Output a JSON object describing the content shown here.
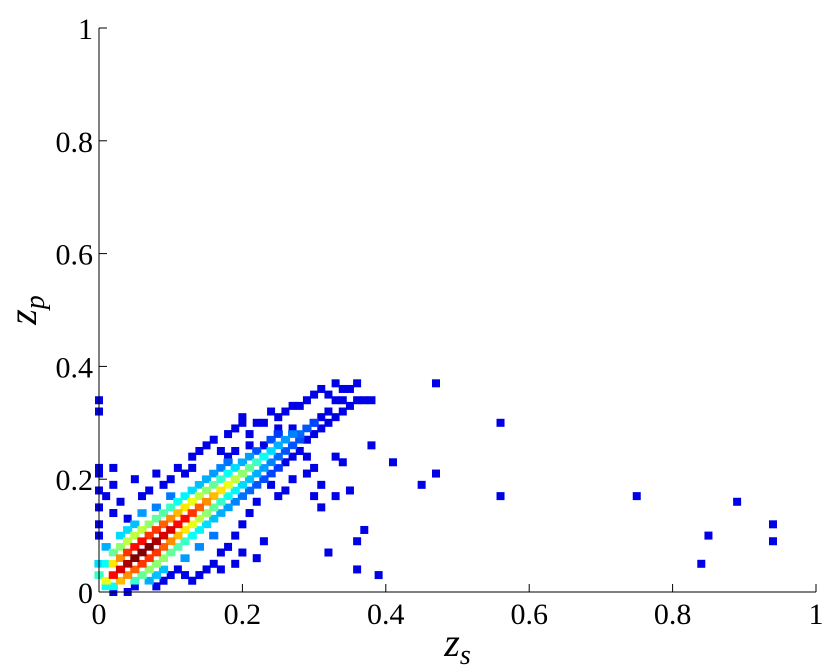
{
  "chart_data": {
    "type": "heatmap",
    "xlabel": {
      "main": "z",
      "sub": "s"
    },
    "ylabel": {
      "main": "z",
      "sub": "p"
    },
    "xlim": [
      0,
      1
    ],
    "ylim": [
      0,
      1
    ],
    "x_ticks": [
      "0",
      "0.2",
      "0.4",
      "0.6",
      "0.8",
      "1"
    ],
    "y_ticks": [
      "0",
      "0.2",
      "0.4",
      "0.6",
      "0.8",
      "1"
    ],
    "grid": false,
    "colormap": "jet",
    "cell_size": 0.01,
    "dense_cells": [
      {
        "x": 0.02,
        "y": 0.03,
        "v": 0.85
      },
      {
        "x": 0.03,
        "y": 0.04,
        "v": 0.9
      },
      {
        "x": 0.04,
        "y": 0.05,
        "v": 0.95
      },
      {
        "x": 0.05,
        "y": 0.06,
        "v": 1.0
      },
      {
        "x": 0.06,
        "y": 0.07,
        "v": 1.0
      },
      {
        "x": 0.07,
        "y": 0.08,
        "v": 1.0
      },
      {
        "x": 0.08,
        "y": 0.09,
        "v": 0.95
      },
      {
        "x": 0.09,
        "y": 0.1,
        "v": 0.9
      },
      {
        "x": 0.1,
        "y": 0.11,
        "v": 0.9
      },
      {
        "x": 0.11,
        "y": 0.12,
        "v": 0.85
      },
      {
        "x": 0.12,
        "y": 0.13,
        "v": 0.85
      },
      {
        "x": 0.13,
        "y": 0.14,
        "v": 0.8
      },
      {
        "x": 0.14,
        "y": 0.15,
        "v": 0.75
      },
      {
        "x": 0.15,
        "y": 0.16,
        "v": 0.7
      },
      {
        "x": 0.16,
        "y": 0.17,
        "v": 0.65
      },
      {
        "x": 0.17,
        "y": 0.18,
        "v": 0.6
      },
      {
        "x": 0.18,
        "y": 0.19,
        "v": 0.55
      },
      {
        "x": 0.19,
        "y": 0.2,
        "v": 0.5
      },
      {
        "x": 0.2,
        "y": 0.21,
        "v": 0.45
      },
      {
        "x": 0.21,
        "y": 0.22,
        "v": 0.4
      },
      {
        "x": 0.22,
        "y": 0.23,
        "v": 0.35
      },
      {
        "x": 0.23,
        "y": 0.24,
        "v": 0.3
      },
      {
        "x": 0.24,
        "y": 0.25,
        "v": 0.25
      },
      {
        "x": 0.25,
        "y": 0.26,
        "v": 0.2
      },
      {
        "x": 0.26,
        "y": 0.27,
        "v": 0.18
      },
      {
        "x": 0.27,
        "y": 0.28,
        "v": 0.15
      },
      {
        "x": 0.01,
        "y": 0.02,
        "v": 0.55
      },
      {
        "x": 0.02,
        "y": 0.05,
        "v": 0.6
      },
      {
        "x": 0.03,
        "y": 0.06,
        "v": 0.7
      },
      {
        "x": 0.04,
        "y": 0.07,
        "v": 0.8
      },
      {
        "x": 0.05,
        "y": 0.08,
        "v": 0.85
      },
      {
        "x": 0.06,
        "y": 0.09,
        "v": 0.85
      },
      {
        "x": 0.07,
        "y": 0.1,
        "v": 0.8
      },
      {
        "x": 0.08,
        "y": 0.11,
        "v": 0.8
      },
      {
        "x": 0.09,
        "y": 0.12,
        "v": 0.75
      },
      {
        "x": 0.1,
        "y": 0.13,
        "v": 0.7
      },
      {
        "x": 0.11,
        "y": 0.14,
        "v": 0.65
      },
      {
        "x": 0.12,
        "y": 0.15,
        "v": 0.6
      },
      {
        "x": 0.13,
        "y": 0.16,
        "v": 0.55
      },
      {
        "x": 0.14,
        "y": 0.17,
        "v": 0.5
      },
      {
        "x": 0.15,
        "y": 0.18,
        "v": 0.45
      },
      {
        "x": 0.16,
        "y": 0.19,
        "v": 0.4
      },
      {
        "x": 0.17,
        "y": 0.2,
        "v": 0.35
      },
      {
        "x": 0.18,
        "y": 0.21,
        "v": 0.3
      },
      {
        "x": 0.19,
        "y": 0.22,
        "v": 0.25
      },
      {
        "x": 0.2,
        "y": 0.23,
        "v": 0.2
      },
      {
        "x": 0.21,
        "y": 0.24,
        "v": 0.18
      },
      {
        "x": 0.03,
        "y": 0.02,
        "v": 0.65
      },
      {
        "x": 0.04,
        "y": 0.03,
        "v": 0.7
      },
      {
        "x": 0.05,
        "y": 0.04,
        "v": 0.75
      },
      {
        "x": 0.06,
        "y": 0.05,
        "v": 0.8
      },
      {
        "x": 0.07,
        "y": 0.06,
        "v": 0.8
      },
      {
        "x": 0.08,
        "y": 0.07,
        "v": 0.8
      },
      {
        "x": 0.09,
        "y": 0.08,
        "v": 0.75
      },
      {
        "x": 0.1,
        "y": 0.09,
        "v": 0.7
      },
      {
        "x": 0.11,
        "y": 0.1,
        "v": 0.65
      },
      {
        "x": 0.12,
        "y": 0.11,
        "v": 0.6
      },
      {
        "x": 0.13,
        "y": 0.12,
        "v": 0.55
      },
      {
        "x": 0.14,
        "y": 0.13,
        "v": 0.5
      },
      {
        "x": 0.15,
        "y": 0.14,
        "v": 0.45
      },
      {
        "x": 0.16,
        "y": 0.15,
        "v": 0.4
      },
      {
        "x": 0.17,
        "y": 0.16,
        "v": 0.35
      },
      {
        "x": 0.18,
        "y": 0.17,
        "v": 0.3
      },
      {
        "x": 0.19,
        "y": 0.18,
        "v": 0.28
      },
      {
        "x": 0.2,
        "y": 0.19,
        "v": 0.25
      },
      {
        "x": 0.21,
        "y": 0.2,
        "v": 0.22
      },
      {
        "x": 0.22,
        "y": 0.21,
        "v": 0.2
      },
      {
        "x": 0.23,
        "y": 0.22,
        "v": 0.18
      },
      {
        "x": 0.24,
        "y": 0.23,
        "v": 0.15
      },
      {
        "x": 0.25,
        "y": 0.24,
        "v": 0.12
      },
      {
        "x": 0.26,
        "y": 0.25,
        "v": 0.1
      },
      {
        "x": 0.02,
        "y": 0.07,
        "v": 0.4
      },
      {
        "x": 0.03,
        "y": 0.08,
        "v": 0.45
      },
      {
        "x": 0.04,
        "y": 0.09,
        "v": 0.5
      },
      {
        "x": 0.05,
        "y": 0.1,
        "v": 0.5
      },
      {
        "x": 0.06,
        "y": 0.11,
        "v": 0.5
      },
      {
        "x": 0.07,
        "y": 0.12,
        "v": 0.45
      },
      {
        "x": 0.08,
        "y": 0.13,
        "v": 0.4
      },
      {
        "x": 0.09,
        "y": 0.14,
        "v": 0.38
      },
      {
        "x": 0.1,
        "y": 0.15,
        "v": 0.35
      },
      {
        "x": 0.11,
        "y": 0.16,
        "v": 0.3
      },
      {
        "x": 0.12,
        "y": 0.17,
        "v": 0.28
      },
      {
        "x": 0.13,
        "y": 0.18,
        "v": 0.25
      },
      {
        "x": 0.14,
        "y": 0.19,
        "v": 0.22
      },
      {
        "x": 0.15,
        "y": 0.2,
        "v": 0.2
      },
      {
        "x": 0.16,
        "y": 0.21,
        "v": 0.18
      },
      {
        "x": 0.17,
        "y": 0.22,
        "v": 0.15
      },
      {
        "x": 0.18,
        "y": 0.23,
        "v": 0.13
      },
      {
        "x": 0.05,
        "y": 0.02,
        "v": 0.35
      },
      {
        "x": 0.06,
        "y": 0.03,
        "v": 0.4
      },
      {
        "x": 0.07,
        "y": 0.04,
        "v": 0.45
      },
      {
        "x": 0.08,
        "y": 0.05,
        "v": 0.45
      },
      {
        "x": 0.09,
        "y": 0.06,
        "v": 0.45
      },
      {
        "x": 0.1,
        "y": 0.07,
        "v": 0.4
      },
      {
        "x": 0.11,
        "y": 0.08,
        "v": 0.38
      },
      {
        "x": 0.12,
        "y": 0.09,
        "v": 0.35
      },
      {
        "x": 0.13,
        "y": 0.1,
        "v": 0.3
      },
      {
        "x": 0.14,
        "y": 0.11,
        "v": 0.28
      },
      {
        "x": 0.15,
        "y": 0.12,
        "v": 0.25
      },
      {
        "x": 0.16,
        "y": 0.13,
        "v": 0.22
      },
      {
        "x": 0.17,
        "y": 0.14,
        "v": 0.2
      },
      {
        "x": 0.18,
        "y": 0.15,
        "v": 0.18
      },
      {
        "x": 0.19,
        "y": 0.16,
        "v": 0.15
      },
      {
        "x": 0.2,
        "y": 0.17,
        "v": 0.13
      },
      {
        "x": 0.21,
        "y": 0.18,
        "v": 0.12
      },
      {
        "x": 0.22,
        "y": 0.19,
        "v": 0.1
      },
      {
        "x": 0.01,
        "y": 0.05,
        "v": 0.3
      },
      {
        "x": 0.01,
        "y": 0.08,
        "v": 0.2
      },
      {
        "x": 0.0,
        "y": 0.03,
        "v": 0.35
      },
      {
        "x": 0.0,
        "y": 0.05,
        "v": 0.25
      },
      {
        "x": 0.01,
        "y": 0.01,
        "v": 0.3
      },
      {
        "x": 0.02,
        "y": 0.01,
        "v": 0.3
      },
      {
        "x": 0.03,
        "y": 0.1,
        "v": 0.25
      },
      {
        "x": 0.04,
        "y": 0.11,
        "v": 0.25
      },
      {
        "x": 0.05,
        "y": 0.12,
        "v": 0.22
      },
      {
        "x": 0.07,
        "y": 0.02,
        "v": 0.2
      },
      {
        "x": 0.08,
        "y": 0.03,
        "v": 0.22
      },
      {
        "x": 0.09,
        "y": 0.04,
        "v": 0.22
      },
      {
        "x": 0.06,
        "y": 0.14,
        "v": 0.18
      },
      {
        "x": 0.08,
        "y": 0.15,
        "v": 0.15
      },
      {
        "x": 0.1,
        "y": 0.17,
        "v": 0.14
      },
      {
        "x": 0.12,
        "y": 0.06,
        "v": 0.18
      },
      {
        "x": 0.14,
        "y": 0.08,
        "v": 0.16
      },
      {
        "x": 0.16,
        "y": 0.1,
        "v": 0.14
      },
      {
        "x": 0.28,
        "y": 0.28,
        "v": 0.12
      },
      {
        "x": 0.29,
        "y": 0.29,
        "v": 0.1
      },
      {
        "x": 0.3,
        "y": 0.3,
        "v": 0.08
      },
      {
        "x": 0.27,
        "y": 0.26,
        "v": 0.1
      },
      {
        "x": 0.28,
        "y": 0.27,
        "v": 0.09
      },
      {
        "x": 0.22,
        "y": 0.25,
        "v": 0.1
      },
      {
        "x": 0.24,
        "y": 0.27,
        "v": 0.09
      },
      {
        "x": 0.25,
        "y": 0.28,
        "v": 0.07
      },
      {
        "x": 0.23,
        "y": 0.2,
        "v": 0.09
      },
      {
        "x": 0.24,
        "y": 0.21,
        "v": 0.08
      },
      {
        "x": 0.25,
        "y": 0.22,
        "v": 0.07
      }
    ],
    "sparse_points": [
      [
        0.0,
        0.34
      ],
      [
        0.0,
        0.32
      ],
      [
        0.0,
        0.22
      ],
      [
        0.0,
        0.21
      ],
      [
        0.0,
        0.18
      ],
      [
        0.0,
        0.15
      ],
      [
        0.0,
        0.12
      ],
      [
        0.0,
        0.1
      ],
      [
        0.02,
        0.22
      ],
      [
        0.02,
        0.19
      ],
      [
        0.01,
        0.17
      ],
      [
        0.02,
        0.0
      ],
      [
        0.02,
        0.14
      ],
      [
        0.03,
        0.16
      ],
      [
        0.04,
        0.13
      ],
      [
        0.05,
        0.2
      ],
      [
        0.04,
        0.0
      ],
      [
        0.05,
        0.01
      ],
      [
        0.06,
        0.17
      ],
      [
        0.07,
        0.18
      ],
      [
        0.08,
        0.21
      ],
      [
        0.09,
        0.19
      ],
      [
        0.1,
        0.2
      ],
      [
        0.11,
        0.22
      ],
      [
        0.12,
        0.21
      ],
      [
        0.13,
        0.22
      ],
      [
        0.13,
        0.24
      ],
      [
        0.14,
        0.25
      ],
      [
        0.15,
        0.26
      ],
      [
        0.16,
        0.27
      ],
      [
        0.17,
        0.25
      ],
      [
        0.18,
        0.28
      ],
      [
        0.19,
        0.29
      ],
      [
        0.2,
        0.3
      ],
      [
        0.2,
        0.31
      ],
      [
        0.21,
        0.28
      ],
      [
        0.22,
        0.3
      ],
      [
        0.23,
        0.3
      ],
      [
        0.24,
        0.32
      ],
      [
        0.25,
        0.31
      ],
      [
        0.26,
        0.32
      ],
      [
        0.27,
        0.33
      ],
      [
        0.28,
        0.33
      ],
      [
        0.29,
        0.34
      ],
      [
        0.3,
        0.35
      ],
      [
        0.31,
        0.36
      ],
      [
        0.32,
        0.35
      ],
      [
        0.33,
        0.37
      ],
      [
        0.34,
        0.36
      ],
      [
        0.35,
        0.36
      ],
      [
        0.36,
        0.37
      ],
      [
        0.37,
        0.34
      ],
      [
        0.33,
        0.34
      ],
      [
        0.34,
        0.34
      ],
      [
        0.32,
        0.32
      ],
      [
        0.31,
        0.31
      ],
      [
        0.3,
        0.3
      ],
      [
        0.29,
        0.27
      ],
      [
        0.3,
        0.28
      ],
      [
        0.31,
        0.29
      ],
      [
        0.32,
        0.3
      ],
      [
        0.33,
        0.31
      ],
      [
        0.34,
        0.32
      ],
      [
        0.35,
        0.33
      ],
      [
        0.36,
        0.34
      ],
      [
        0.28,
        0.25
      ],
      [
        0.29,
        0.24
      ],
      [
        0.3,
        0.22
      ],
      [
        0.29,
        0.21
      ],
      [
        0.31,
        0.19
      ],
      [
        0.3,
        0.17
      ],
      [
        0.31,
        0.15
      ],
      [
        0.33,
        0.24
      ],
      [
        0.34,
        0.23
      ],
      [
        0.35,
        0.18
      ],
      [
        0.33,
        0.17
      ],
      [
        0.36,
        0.09
      ],
      [
        0.37,
        0.11
      ],
      [
        0.32,
        0.07
      ],
      [
        0.36,
        0.04
      ],
      [
        0.38,
        0.26
      ],
      [
        0.38,
        0.34
      ],
      [
        0.41,
        0.23
      ],
      [
        0.39,
        0.03
      ],
      [
        0.45,
        0.19
      ],
      [
        0.47,
        0.21
      ],
      [
        0.47,
        0.37
      ],
      [
        0.56,
        0.3
      ],
      [
        0.56,
        0.17
      ],
      [
        0.75,
        0.17
      ],
      [
        0.84,
        0.05
      ],
      [
        0.85,
        0.1
      ],
      [
        0.89,
        0.16
      ],
      [
        0.94,
        0.12
      ],
      [
        0.94,
        0.09
      ],
      [
        0.24,
        0.19
      ],
      [
        0.25,
        0.17
      ],
      [
        0.26,
        0.18
      ],
      [
        0.27,
        0.2
      ],
      [
        0.22,
        0.16
      ],
      [
        0.21,
        0.14
      ],
      [
        0.2,
        0.12
      ],
      [
        0.19,
        0.1
      ],
      [
        0.18,
        0.08
      ],
      [
        0.17,
        0.07
      ],
      [
        0.16,
        0.05
      ],
      [
        0.15,
        0.04
      ],
      [
        0.14,
        0.03
      ],
      [
        0.13,
        0.02
      ],
      [
        0.12,
        0.03
      ],
      [
        0.11,
        0.04
      ],
      [
        0.1,
        0.03
      ],
      [
        0.09,
        0.02
      ],
      [
        0.08,
        0.01
      ],
      [
        0.22,
        0.06
      ],
      [
        0.2,
        0.07
      ],
      [
        0.23,
        0.09
      ],
      [
        0.17,
        0.04
      ],
      [
        0.19,
        0.05
      ],
      [
        0.26,
        0.23
      ],
      [
        0.27,
        0.24
      ],
      [
        0.23,
        0.26
      ],
      [
        0.21,
        0.26
      ],
      [
        0.19,
        0.25
      ],
      [
        0.18,
        0.24
      ],
      [
        0.27,
        0.29
      ],
      [
        0.25,
        0.29
      ]
    ]
  }
}
